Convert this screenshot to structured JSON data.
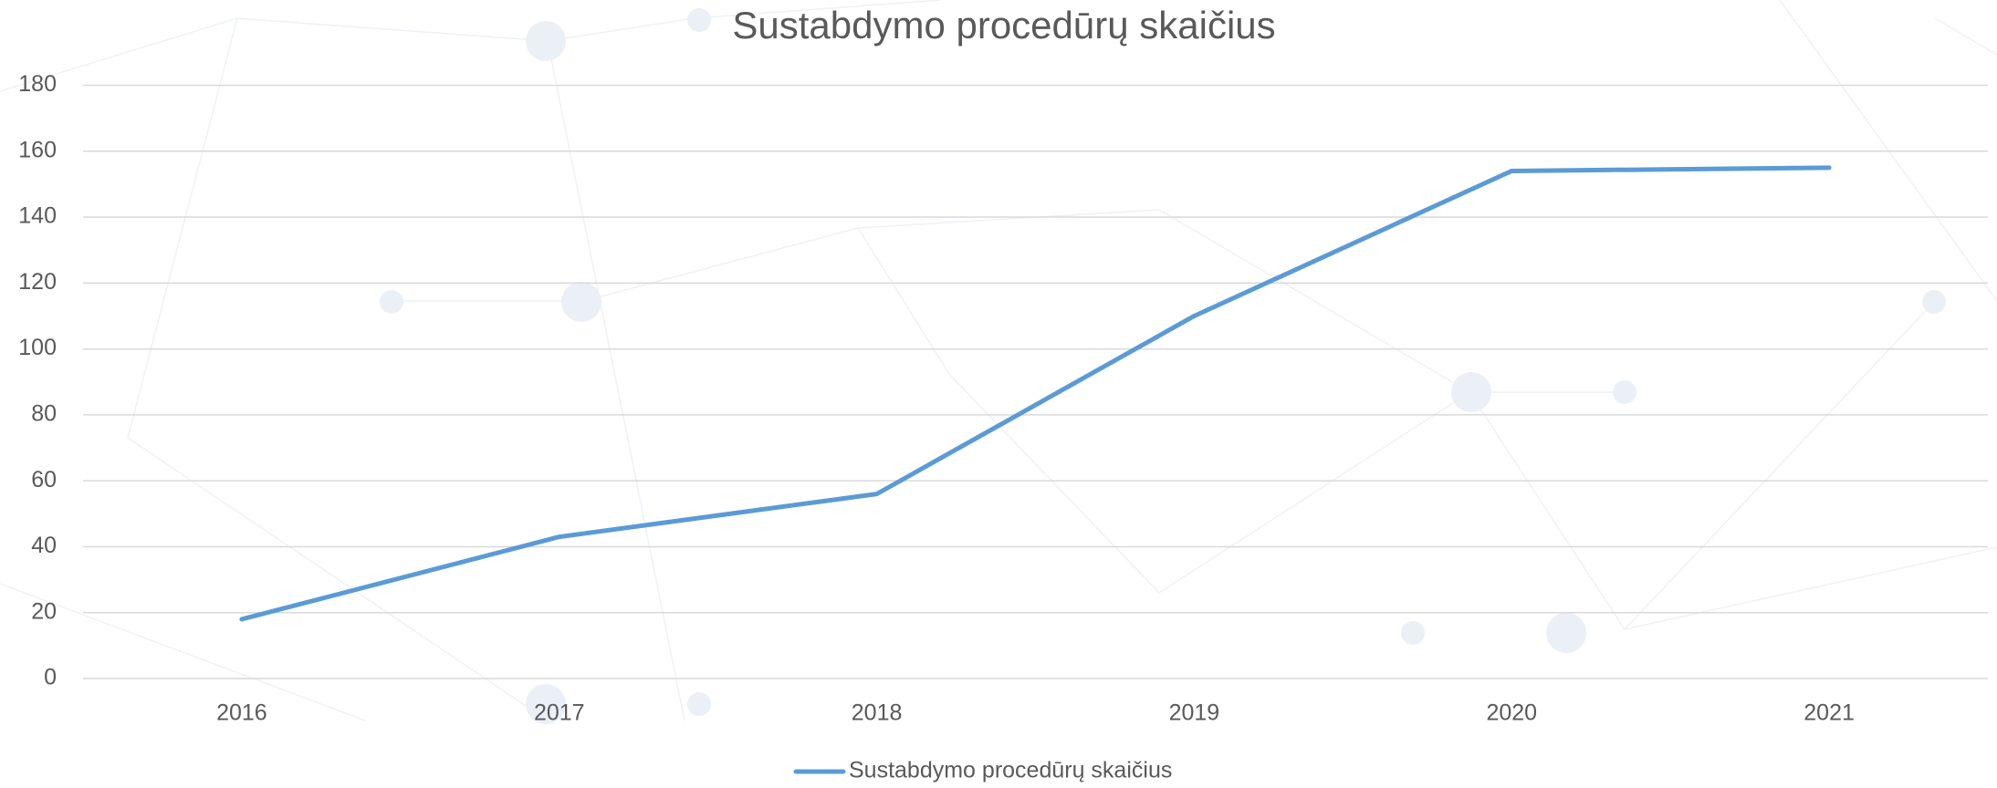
{
  "chart_data": {
    "type": "line",
    "title": "Sustabdymo procedūrų skaičius",
    "categories": [
      "2016",
      "2017",
      "2018",
      "2019",
      "2020",
      "2021"
    ],
    "series": [
      {
        "name": "Sustabdymo procedūrų skaičius",
        "color": "#5b9bd5",
        "values": [
          18,
          43,
          56,
          110,
          154,
          155
        ]
      }
    ],
    "ylim": [
      0,
      180
    ],
    "yticks": [
      0,
      20,
      40,
      60,
      80,
      100,
      120,
      140,
      160,
      180
    ],
    "grid": true,
    "legend": "bottom"
  }
}
